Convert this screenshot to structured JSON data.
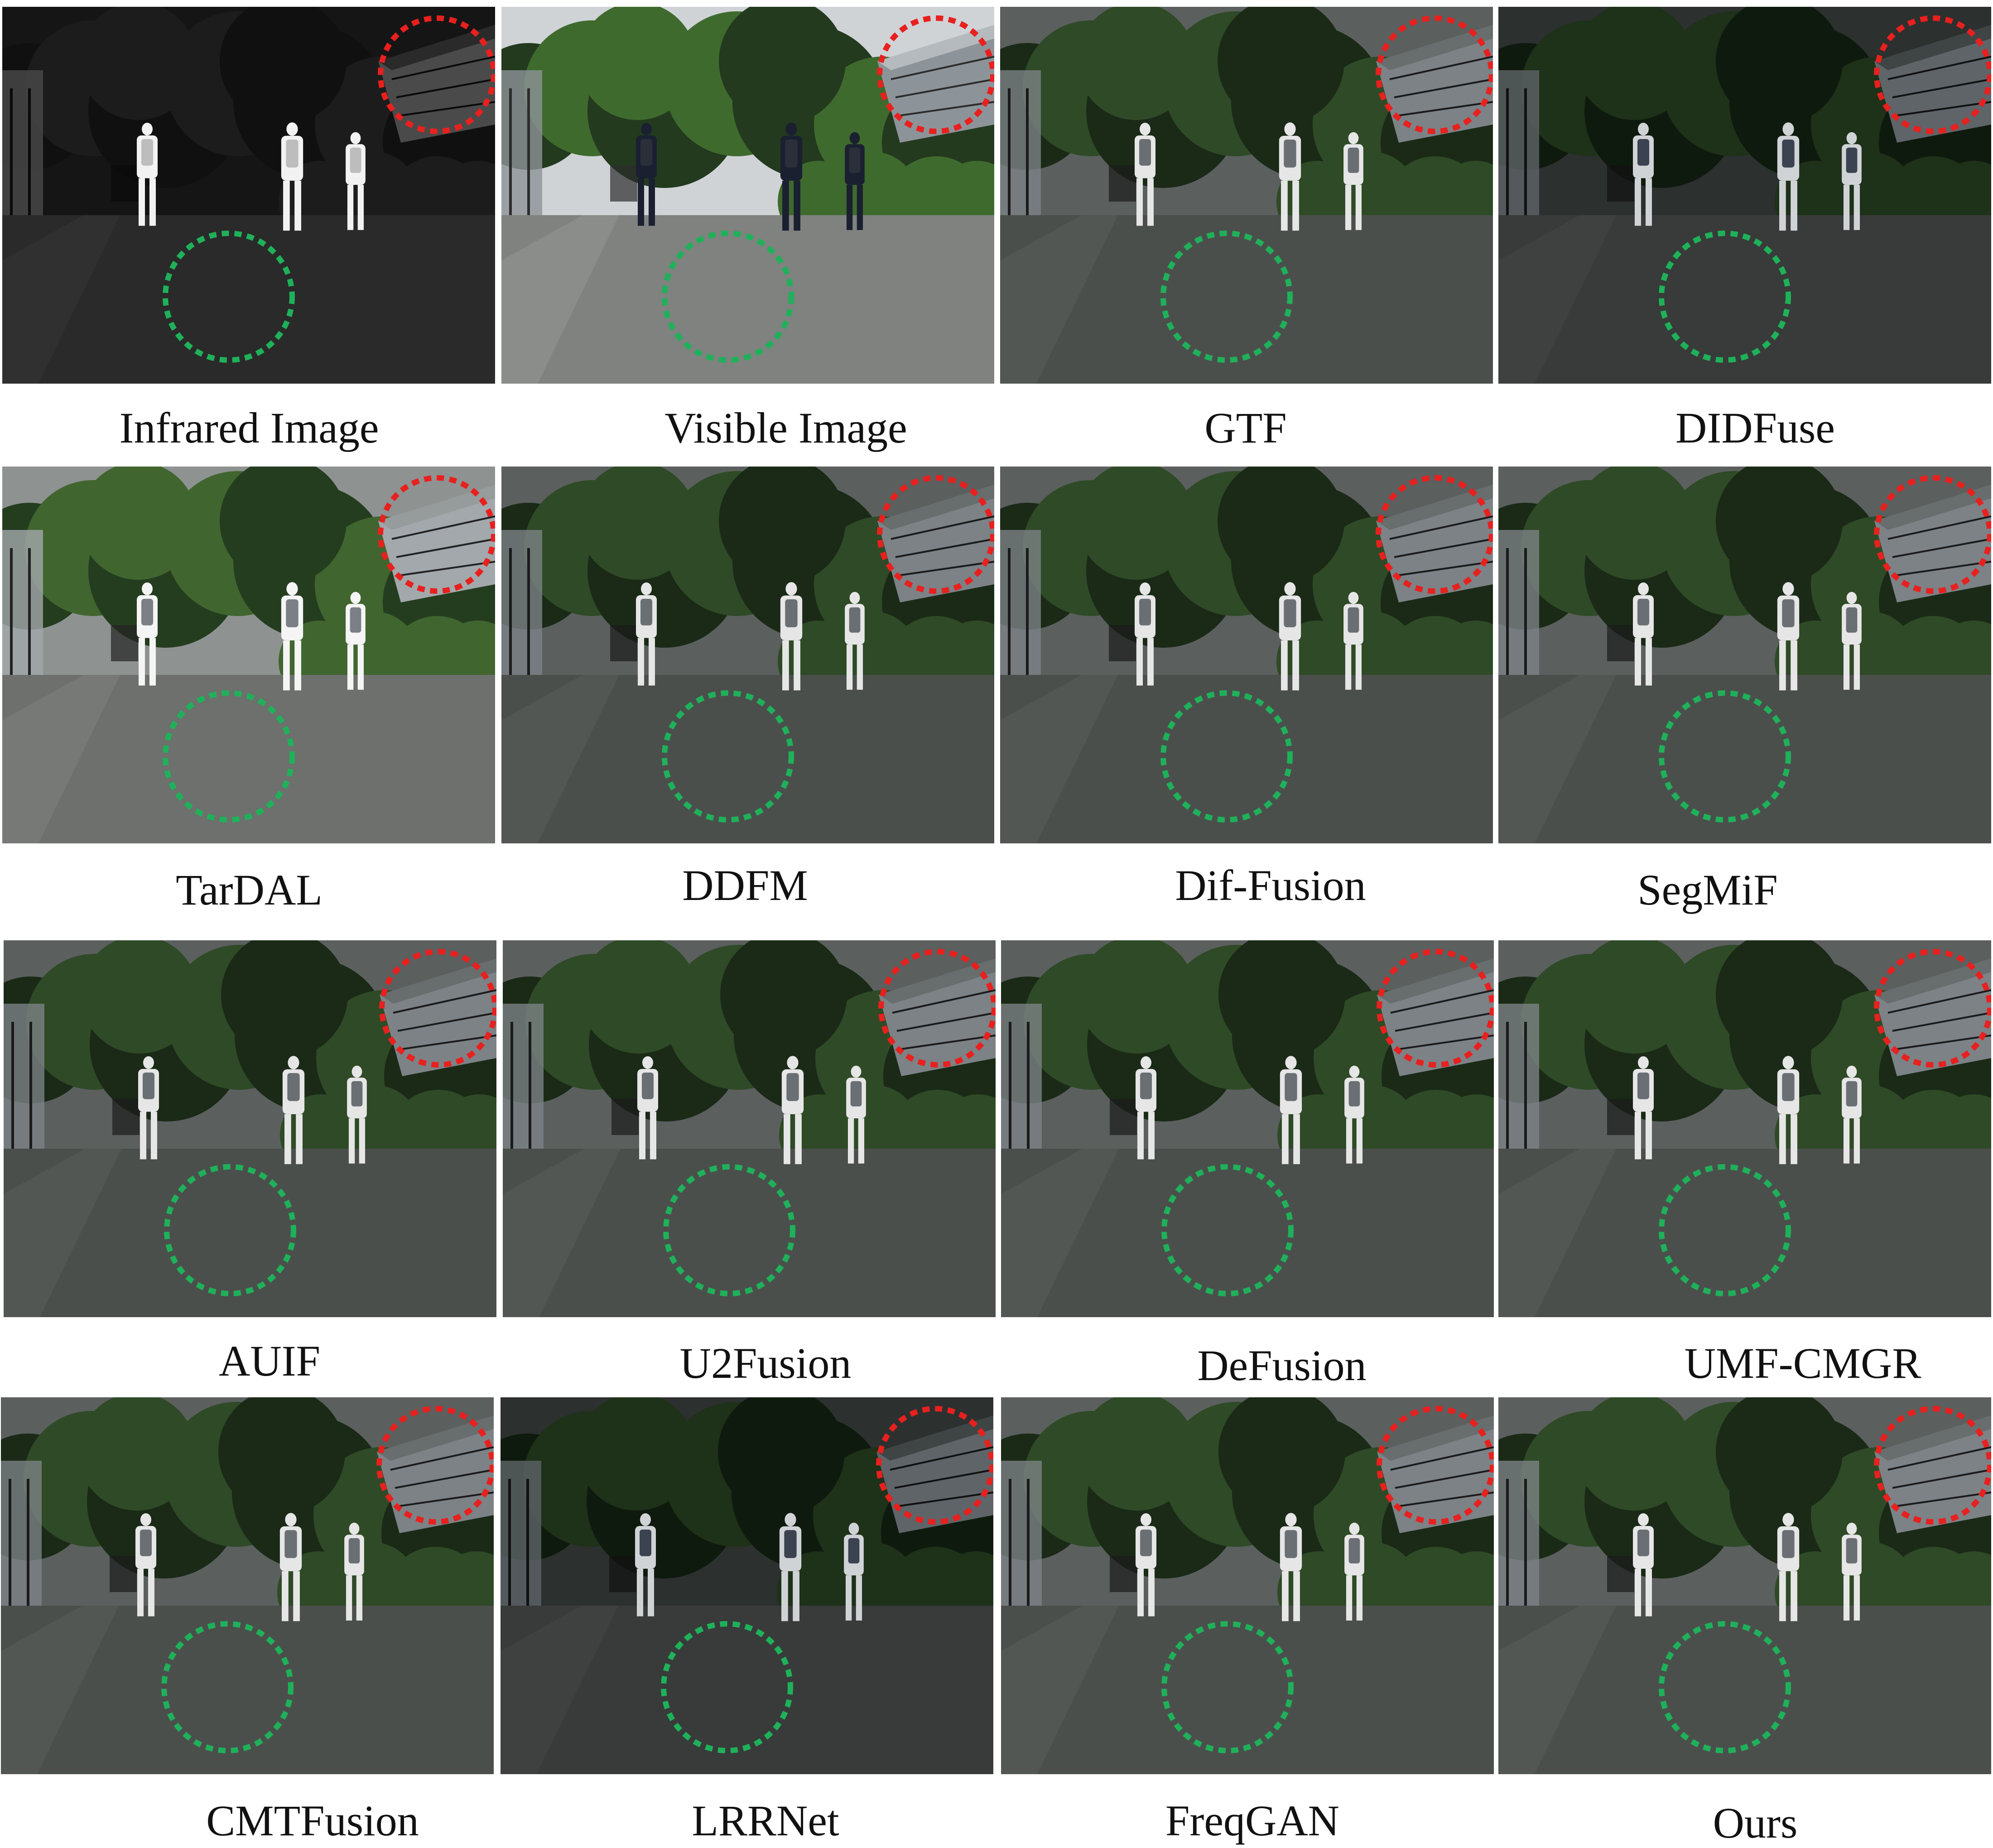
{
  "panels": [
    {
      "label": "Infrared Image",
      "style": "ir"
    },
    {
      "label": "Visible Image",
      "style": "vis"
    },
    {
      "label": "GTF",
      "style": "fused"
    },
    {
      "label": "DIDFuse",
      "style": "dark"
    },
    {
      "label": "TarDAL",
      "style": "bright"
    },
    {
      "label": "DDFM",
      "style": "fused"
    },
    {
      "label": "Dif-Fusion",
      "style": "fused"
    },
    {
      "label": "SegMiF",
      "style": "fused"
    },
    {
      "label": "AUIF",
      "style": "fused"
    },
    {
      "label": "U2Fusion",
      "style": "fused"
    },
    {
      "label": "DeFusion",
      "style": "fused"
    },
    {
      "label": "UMF-CMGR",
      "style": "fused"
    },
    {
      "label": "CMTFusion",
      "style": "fused"
    },
    {
      "label": "LRRNet",
      "style": "dark"
    },
    {
      "label": "FreqGAN",
      "style": "fused"
    },
    {
      "label": "Ours",
      "style": "fused"
    }
  ],
  "highlight_colors": {
    "top_right_circle": "#e8201e",
    "road_circle": "#1fb15a"
  }
}
